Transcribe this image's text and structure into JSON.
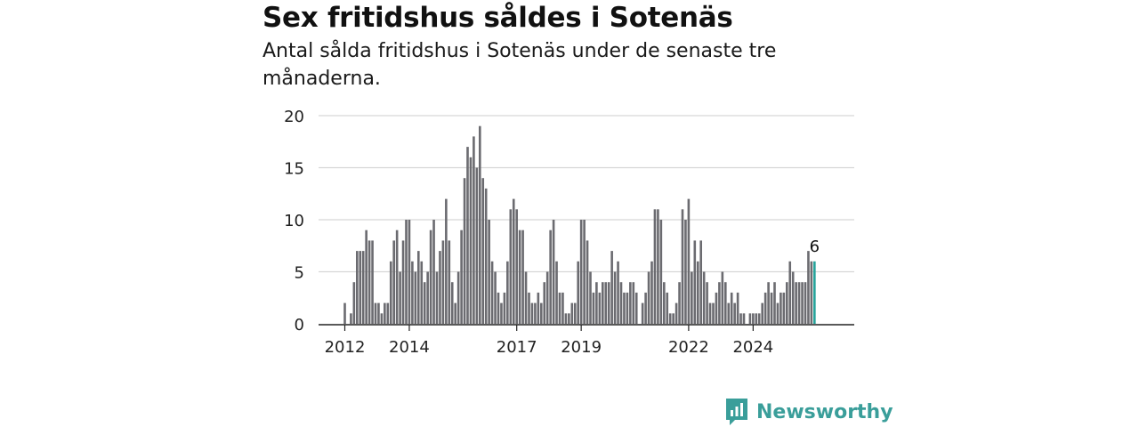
{
  "header": {
    "title": "Sex fritidshus såldes i Sotenäs",
    "subtitle": "Antal sålda fritidshus i Sotenäs under de senaste tre månaderna."
  },
  "brand": {
    "name": "Newsworthy",
    "icon": "newsworthy-logo-icon",
    "color": "#3a9e9a"
  },
  "chart_data": {
    "type": "bar",
    "title": "Sex fritidshus såldes i Sotenäs",
    "subtitle": "Antal sålda fritidshus i Sotenäs under de senaste tre månaderna.",
    "xlabel": "",
    "ylabel": "",
    "ylim": [
      0,
      20
    ],
    "yticks": [
      0,
      5,
      10,
      15,
      20
    ],
    "xticks": [
      {
        "label": "2012",
        "index": 0
      },
      {
        "label": "2014",
        "index": 21
      },
      {
        "label": "2017",
        "index": 56
      },
      {
        "label": "2019",
        "index": 77
      },
      {
        "label": "2022",
        "index": 112
      },
      {
        "label": "2024",
        "index": 133
      }
    ],
    "grid": true,
    "bar_color": "#6b6b70",
    "highlight_color": "#26a39b",
    "highlight_label": "6",
    "values": [
      2,
      0,
      1,
      4,
      7,
      7,
      7,
      9,
      8,
      8,
      2,
      2,
      1,
      2,
      2,
      6,
      8,
      9,
      5,
      8,
      10,
      10,
      6,
      5,
      7,
      6,
      4,
      5,
      9,
      10,
      5,
      7,
      8,
      12,
      8,
      4,
      2,
      5,
      9,
      14,
      17,
      16,
      18,
      15,
      19,
      14,
      13,
      10,
      6,
      5,
      3,
      2,
      3,
      6,
      11,
      12,
      11,
      9,
      9,
      5,
      3,
      2,
      2,
      3,
      2,
      4,
      5,
      9,
      10,
      6,
      3,
      3,
      1,
      1,
      2,
      2,
      6,
      10,
      10,
      8,
      5,
      3,
      4,
      3,
      4,
      4,
      4,
      7,
      5,
      6,
      4,
      3,
      3,
      4,
      4,
      3,
      0,
      2,
      3,
      5,
      6,
      11,
      11,
      10,
      4,
      3,
      1,
      1,
      2,
      4,
      11,
      10,
      12,
      5,
      8,
      6,
      8,
      5,
      4,
      2,
      2,
      3,
      4,
      5,
      4,
      2,
      3,
      2,
      3,
      1,
      1,
      0,
      1,
      1,
      1,
      1,
      2,
      3,
      4,
      3,
      4,
      2,
      3,
      3,
      4,
      6,
      5,
      4,
      4,
      4,
      4,
      7,
      6,
      6
    ]
  }
}
